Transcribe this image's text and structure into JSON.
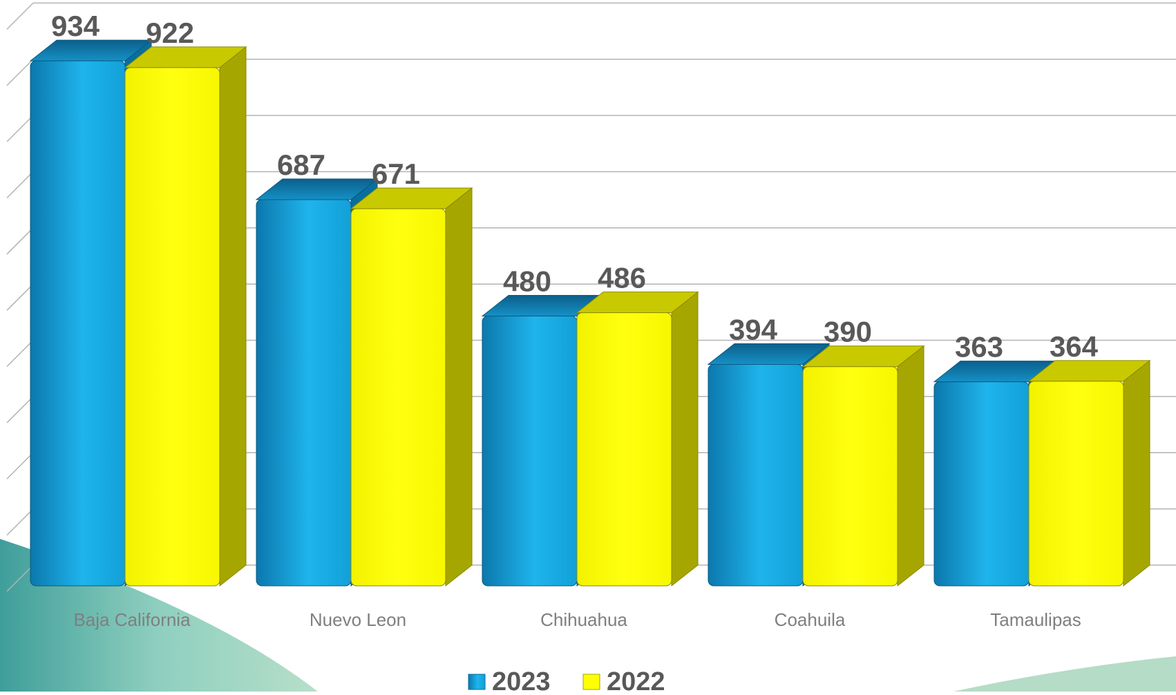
{
  "colors": {
    "series_2023": "#1aa7e0",
    "series_2023_dark": "#0a6e9c",
    "series_2022": "#ffff00",
    "series_2022_dark": "#a6a600",
    "gridline": "#b3b3b3",
    "background_wave": "#5fb3a8"
  },
  "chart_data": {
    "type": "bar",
    "style": "3d-clustered-column",
    "categories": [
      "Baja California",
      "Nuevo Leon",
      "Chihuahua",
      "Coahuila",
      "Tamaulipas"
    ],
    "series": [
      {
        "name": "2023",
        "values": [
          934,
          687,
          480,
          394,
          363
        ]
      },
      {
        "name": "2022",
        "values": [
          922,
          671,
          486,
          390,
          364
        ]
      }
    ],
    "ylim": [
      0,
      1000
    ],
    "grid": true,
    "legend_position": "bottom"
  }
}
